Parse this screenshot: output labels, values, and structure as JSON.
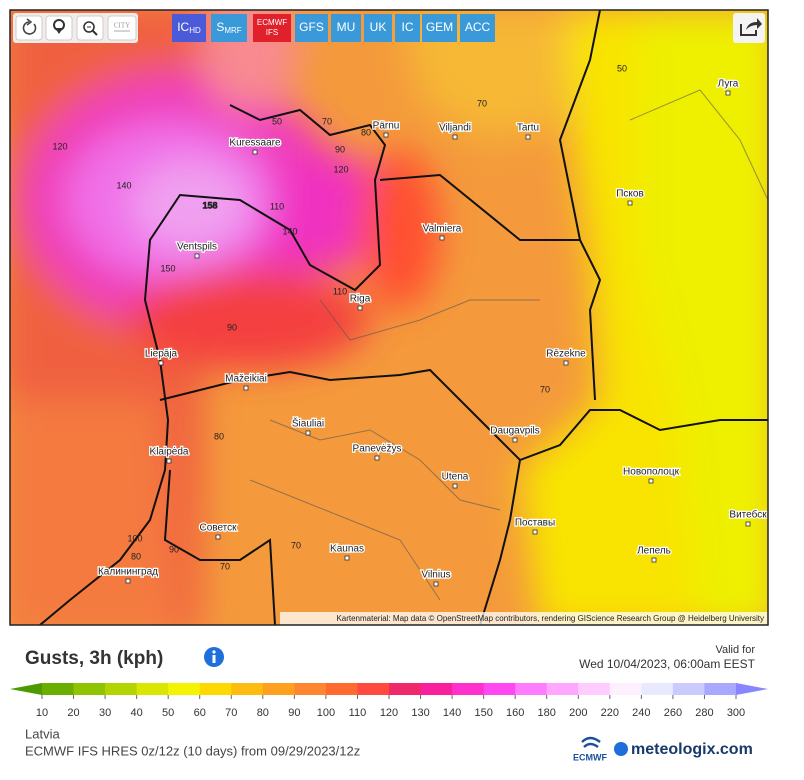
{
  "toolbar": {
    "city_button": "CITY",
    "models": [
      {
        "label": "IC",
        "sub": "HD",
        "color": "#4a5ad8"
      },
      {
        "label": "S",
        "sub": "MRF",
        "color": "#3a9ad9"
      },
      {
        "label": "ECMWF",
        "sub": "IFS",
        "color": "#e0202a"
      },
      {
        "label": "GFS",
        "color": "#3a9ad9"
      },
      {
        "label": "MU",
        "color": "#3a9ad9"
      },
      {
        "label": "UK",
        "color": "#3a9ad9"
      },
      {
        "label": "IC",
        "color": "#3a9ad9"
      },
      {
        "label": "GEM",
        "color": "#3a9ad9"
      },
      {
        "label": "ACC",
        "color": "#3a9ad9"
      }
    ]
  },
  "map": {
    "cities": [
      "Kuressaare",
      "Pärnu",
      "Viljandi",
      "Tartu",
      "Луга",
      "Псков",
      "Valmiera",
      "Ventspils",
      "Riga",
      "Liepāja",
      "Rēzekne",
      "Mažeikiai",
      "Šiauliai",
      "Daugavpils",
      "Klaipėda",
      "Panevėžys",
      "Utena",
      "Новополоцк",
      "Советск",
      "Поставы",
      "Витебск",
      "Kaunas",
      "Лепель",
      "Калининград",
      "Vilnius"
    ],
    "contour_labels": [
      "120",
      "140",
      "158",
      "150",
      "110",
      "140",
      "120",
      "90",
      "80",
      "70",
      "50",
      "70",
      "50",
      "110",
      "90",
      "80",
      "70",
      "100",
      "80",
      "90",
      "70",
      "70"
    ],
    "attribution": "Kartenmaterial: Map data © OpenStreetMap contributors, rendering GIScience Research Group @ Heidelberg University"
  },
  "header": {
    "title": "Gusts, 3h (kph)",
    "valid_label": "Valid for",
    "valid_time": "Wed 10/04/2023, 06:00am EEST"
  },
  "legend": {
    "labels": [
      10,
      20,
      30,
      40,
      50,
      60,
      70,
      80,
      90,
      100,
      110,
      120,
      130,
      140,
      150,
      160,
      180,
      200,
      220,
      240,
      260,
      280,
      300
    ],
    "colors": [
      "#4c9a00",
      "#6aae00",
      "#8ec400",
      "#b4d400",
      "#d8e600",
      "#f4f400",
      "#ffd800",
      "#ffbc10",
      "#ffa020",
      "#ff8630",
      "#ff6a30",
      "#ff4a40",
      "#f02a6a",
      "#f8209c",
      "#ff30cc",
      "#ff48f0",
      "#ff7cff",
      "#ffa6ff",
      "#ffccff",
      "#fff0ff",
      "#e8e8ff",
      "#cacaff",
      "#a8a8ff",
      "#8686ff"
    ]
  },
  "footer": {
    "region": "Latvia",
    "model_run": "ECMWF IFS HRES 0z/12z (10 days) from 09/29/2023/12z",
    "logo_text": "ECMWF",
    "brand": "meteologix.com"
  }
}
